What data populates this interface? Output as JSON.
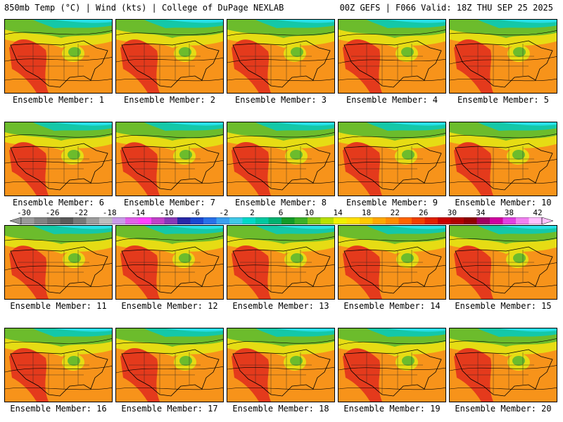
{
  "header": {
    "title_left": "850mb Temp (°C) | Wind (kts) | College of DuPage NEXLAB",
    "title_right": "00Z GEFS | F066 Valid: 18Z THU SEP 25 2025"
  },
  "panels": [
    {
      "label": "Ensemble Member: 1"
    },
    {
      "label": "Ensemble Member: 2"
    },
    {
      "label": "Ensemble Member: 3"
    },
    {
      "label": "Ensemble Member: 4"
    },
    {
      "label": "Ensemble Member: 5"
    },
    {
      "label": "Ensemble Member: 6"
    },
    {
      "label": "Ensemble Member: 7"
    },
    {
      "label": "Ensemble Member: 8"
    },
    {
      "label": "Ensemble Member: 9"
    },
    {
      "label": "Ensemble Member: 10"
    },
    {
      "label": "Ensemble Member: 11"
    },
    {
      "label": "Ensemble Member: 12"
    },
    {
      "label": "Ensemble Member: 13"
    },
    {
      "label": "Ensemble Member: 14"
    },
    {
      "label": "Ensemble Member: 15"
    },
    {
      "label": "Ensemble Member: 16"
    },
    {
      "label": "Ensemble Member: 17"
    },
    {
      "label": "Ensemble Member: 18"
    },
    {
      "label": "Ensemble Member: 19"
    },
    {
      "label": "Ensemble Member: 20"
    }
  ],
  "colorbar": {
    "tick_labels": [
      "-30",
      "-26",
      "-22",
      "-18",
      "-14",
      "-10",
      "-6",
      "-2",
      "2",
      "6",
      "10",
      "14",
      "18",
      "22",
      "26",
      "30",
      "34",
      "38",
      "42"
    ],
    "colors": [
      "#9a9a9a",
      "#828282",
      "#6e6e6e",
      "#5a5a5a",
      "#777777",
      "#9c9c9c",
      "#bdbdbd",
      "#c89ae8",
      "#e060e8",
      "#ff40ff",
      "#c040c8",
      "#8838b8",
      "#2828a8",
      "#1a48d0",
      "#2870e8",
      "#3aa0f0",
      "#40c8e8",
      "#00d8c8",
      "#00c8a0",
      "#00b070",
      "#129a28",
      "#3cb028",
      "#80c818",
      "#b8e000",
      "#f0f000",
      "#ffe000",
      "#ffc800",
      "#ffa800",
      "#ff8c00",
      "#ff6400",
      "#f04000",
      "#e02000",
      "#c80000",
      "#b00000",
      "#900000",
      "#a00060",
      "#d000a0",
      "#e040e0",
      "#f080f0",
      "#ffc0ff"
    ]
  },
  "map_colors": {
    "warm_red": "#e43a1c",
    "orange": "#f7931a",
    "yellow": "#e6dc14",
    "green": "#6cbc2c",
    "teal": "#14c8a8",
    "cyan": "#28e0e8"
  }
}
